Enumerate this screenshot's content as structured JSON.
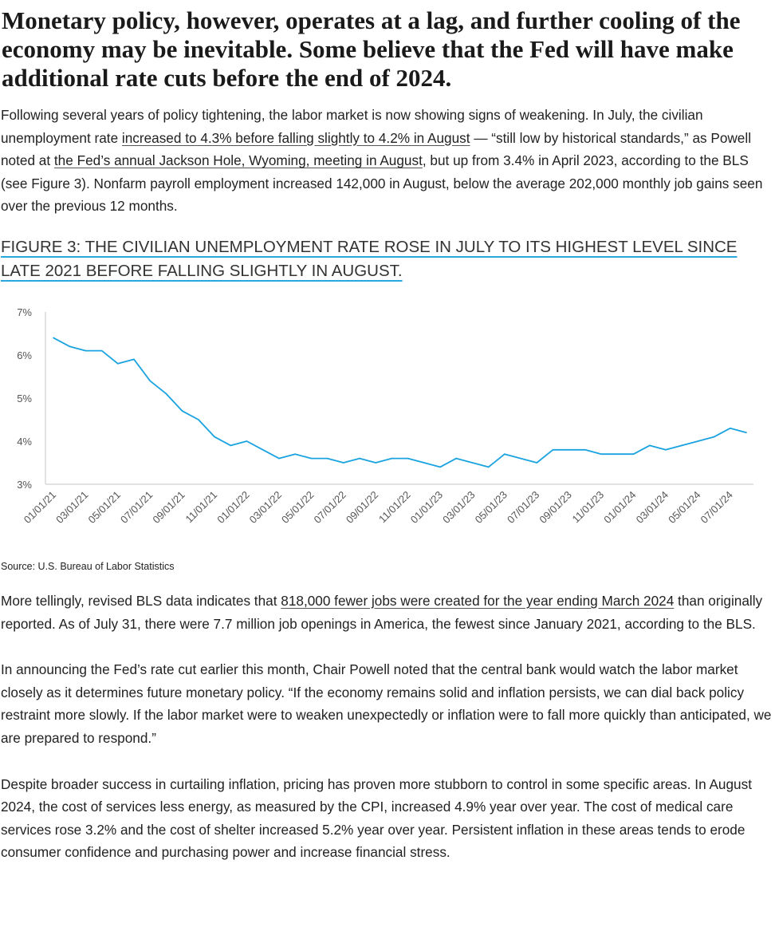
{
  "headline": "Monetary policy, however, operates at a lag, and further cooling of the economy may be inevitable. Some believe that the Fed will have make additional rate cuts before the end of 2024.",
  "para1": {
    "t1": "Following several years of policy tightening, the labor market is now showing signs of weakening. In July, the civilian unemployment rate ",
    "link1": "increased to 4.3% before falling slightly to 4.2% in August",
    "t2": " — “still low by historical standards,” as Powell noted at ",
    "link2": "the Fed’s annual Jackson Hole, Wyoming, meeting in August",
    "t3": ", but up from 3.4% in April 2023, according to the BLS (see Figure 3). Nonfarm payroll employment increased 142,000 in August, below the average 202,000 monthly job gains seen over the previous 12 months."
  },
  "figure_title": "FIGURE 3: THE CIVILIAN UNEMPLOYMENT RATE ROSE IN JULY TO ITS HIGHEST LEVEL SINCE LATE 2021 BEFORE FALLING SLIGHTLY IN AUGUST.",
  "source": "Source: U.S. Bureau of Labor Statistics",
  "para2": {
    "t1": "More tellingly, revised BLS data indicates that ",
    "link1": "818,000 fewer jobs were created for the year ending March 2024",
    "t2": " than originally reported. As of July 31, there were 7.7 million job openings in America, the fewest since January 2021, according to the BLS."
  },
  "para3": "In announcing the Fed’s rate cut earlier this month, Chair Powell noted that the central bank would watch the labor market closely as it determines future monetary policy. “If the economy remains solid and inflation persists, we can dial back policy restraint more slowly. If the labor market were to weaken unexpectedly or inflation were to fall more quickly than anticipated, we are prepared to respond.”",
  "para4": "Despite broader success in curtailing inflation, pricing has proven more stubborn to control in some specific areas. In August 2024, the cost of services less energy, as measured by the CPI, increased 4.9% year over year. The cost of medical care services rose 3.2% and the cost of shelter increased 5.2% year over year. Persistent inflation in these areas tends to erode consumer confidence and purchasing power and increase financial stress.",
  "chart_data": {
    "type": "line",
    "ylim": [
      3,
      7
    ],
    "yticks": [
      "3%",
      "4%",
      "5%",
      "6%",
      "7%"
    ],
    "xtick_labels": [
      "01/01/21",
      "03/01/21",
      "05/01/21",
      "07/01/21",
      "09/01/21",
      "11/01/21",
      "01/01/22",
      "03/01/22",
      "05/01/22",
      "07/01/22",
      "09/01/22",
      "11/01/22",
      "01/01/23",
      "03/01/23",
      "05/01/23",
      "07/01/23",
      "09/01/23",
      "11/01/23",
      "01/01/24",
      "03/01/24",
      "05/01/24",
      "07/01/24"
    ],
    "x_start": "01/01/21",
    "x_frequency": "monthly",
    "values": [
      6.4,
      6.2,
      6.1,
      6.1,
      5.8,
      5.9,
      5.4,
      5.1,
      4.7,
      4.5,
      4.1,
      3.9,
      4.0,
      3.8,
      3.6,
      3.7,
      3.6,
      3.6,
      3.5,
      3.6,
      3.5,
      3.6,
      3.6,
      3.5,
      3.4,
      3.6,
      3.5,
      3.4,
      3.7,
      3.6,
      3.5,
      3.8,
      3.8,
      3.8,
      3.7,
      3.7,
      3.7,
      3.9,
      3.8,
      3.9,
      4.0,
      4.1,
      4.3,
      4.2
    ],
    "line_color": "#1aa3e0",
    "grid": false
  }
}
